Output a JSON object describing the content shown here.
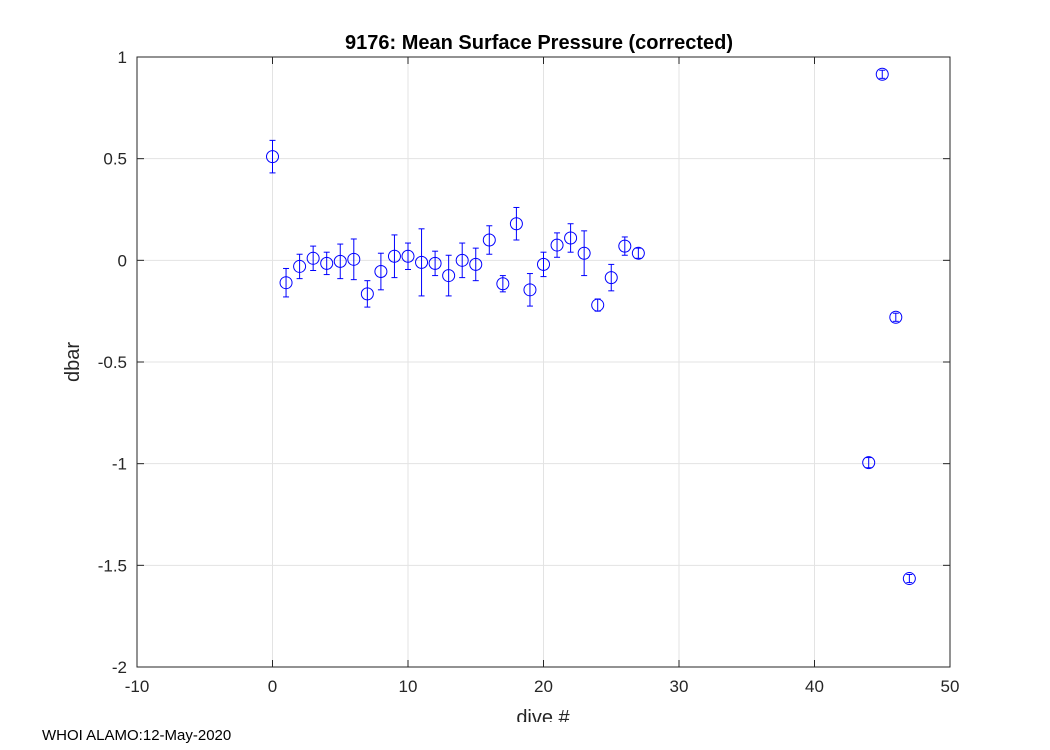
{
  "chart_data": {
    "type": "scatter",
    "title": "9176: Mean Surface Pressure (corrected)",
    "xlabel": "dive #",
    "ylabel": "dbar",
    "xlim": [
      -10,
      50
    ],
    "ylim": [
      -2,
      1
    ],
    "xticks": [
      -10,
      0,
      10,
      20,
      30,
      40,
      50
    ],
    "xtick_labels": [
      "-10",
      "0",
      "10",
      "20",
      "30",
      "40",
      "50"
    ],
    "yticks": [
      -2,
      -1.5,
      -1,
      -0.5,
      0,
      0.5,
      1
    ],
    "ytick_labels": [
      "-2",
      "-1.5",
      "-1",
      "-0.5",
      "0",
      "0.5",
      "1"
    ],
    "grid": true,
    "marker_color": "#0000ff",
    "series": [
      {
        "name": "mean surface pressure",
        "marker": "circle",
        "points": [
          {
            "x": 0,
            "y": 0.51,
            "err": 0.08
          },
          {
            "x": 1,
            "y": -0.11,
            "err": 0.07
          },
          {
            "x": 2,
            "y": -0.03,
            "err": 0.06
          },
          {
            "x": 3,
            "y": 0.01,
            "err": 0.06
          },
          {
            "x": 4,
            "y": -0.015,
            "err": 0.055
          },
          {
            "x": 5,
            "y": -0.005,
            "err": 0.085
          },
          {
            "x": 6,
            "y": 0.005,
            "err": 0.1
          },
          {
            "x": 7,
            "y": -0.165,
            "err": 0.065
          },
          {
            "x": 8,
            "y": -0.055,
            "err": 0.09
          },
          {
            "x": 9,
            "y": 0.02,
            "err": 0.105
          },
          {
            "x": 10,
            "y": 0.02,
            "err": 0.065
          },
          {
            "x": 11,
            "y": -0.01,
            "err": 0.165
          },
          {
            "x": 12,
            "y": -0.015,
            "err": 0.06
          },
          {
            "x": 13,
            "y": -0.075,
            "err": 0.1
          },
          {
            "x": 14,
            "y": 0.0,
            "err": 0.085
          },
          {
            "x": 15,
            "y": -0.02,
            "err": 0.08
          },
          {
            "x": 16,
            "y": 0.1,
            "err": 0.07
          },
          {
            "x": 17,
            "y": -0.115,
            "err": 0.04
          },
          {
            "x": 18,
            "y": 0.18,
            "err": 0.08
          },
          {
            "x": 19,
            "y": -0.145,
            "err": 0.08
          },
          {
            "x": 20,
            "y": -0.02,
            "err": 0.06
          },
          {
            "x": 21,
            "y": 0.075,
            "err": 0.06
          },
          {
            "x": 22,
            "y": 0.11,
            "err": 0.07
          },
          {
            "x": 23,
            "y": 0.035,
            "err": 0.11
          },
          {
            "x": 24,
            "y": -0.22,
            "err": 0.03
          },
          {
            "x": 25,
            "y": -0.085,
            "err": 0.065
          },
          {
            "x": 26,
            "y": 0.07,
            "err": 0.045
          },
          {
            "x": 27,
            "y": 0.035,
            "err": 0.025
          },
          {
            "x": 44,
            "y": -0.995,
            "err": 0.025
          },
          {
            "x": 45,
            "y": 0.915,
            "err": 0.02
          },
          {
            "x": 46,
            "y": -0.28,
            "err": 0.02
          },
          {
            "x": 47,
            "y": -1.565,
            "err": 0.02
          }
        ]
      }
    ]
  },
  "footer": {
    "text": "WHOI ALAMO:12-May-2020"
  }
}
